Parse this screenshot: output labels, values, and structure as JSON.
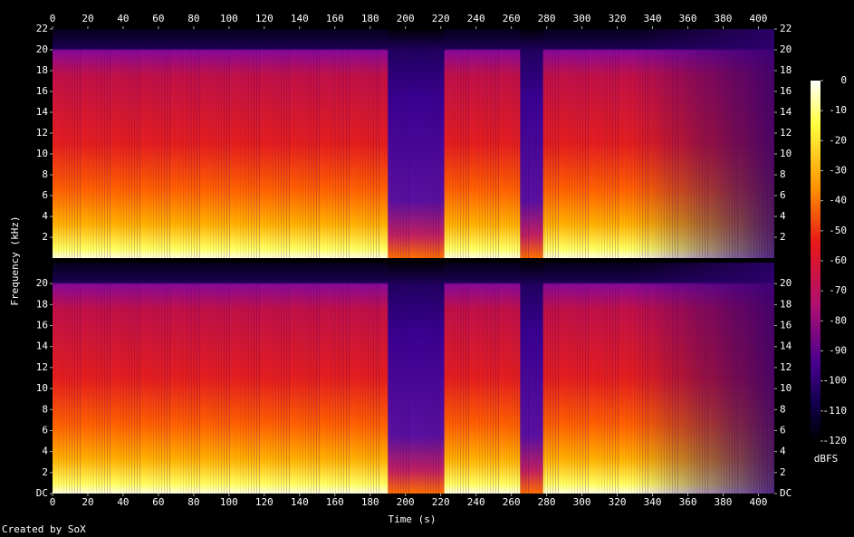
{
  "chart_data": [
    {
      "type": "spectrogram",
      "xtick_side": "top",
      "xlim": [
        0,
        409
      ],
      "xticks": [
        0,
        20,
        40,
        60,
        80,
        100,
        120,
        140,
        160,
        180,
        200,
        220,
        240,
        260,
        280,
        300,
        320,
        340,
        360,
        380,
        400
      ],
      "ylim": [
        0,
        22
      ],
      "yticks": [
        2,
        4,
        6,
        8,
        10,
        12,
        14,
        16,
        18,
        20,
        22
      ]
    },
    {
      "type": "spectrogram",
      "xtick_side": "bottom",
      "xlim": [
        0,
        409
      ],
      "xticks": [
        0,
        20,
        40,
        60,
        80,
        100,
        120,
        140,
        160,
        180,
        200,
        220,
        240,
        260,
        280,
        300,
        320,
        340,
        360,
        380,
        400
      ],
      "ylim": [
        0,
        22
      ],
      "yticks": [
        {
          "value": 0,
          "label": "DC"
        },
        2,
        4,
        6,
        8,
        10,
        12,
        14,
        16,
        18,
        20
      ]
    },
    {
      "type": "colorbar",
      "ylim": [
        -120,
        0
      ],
      "yticks": [
        0,
        -10,
        -20,
        -30,
        -40,
        -50,
        -60,
        -70,
        -80,
        -90,
        -100,
        -110,
        -120
      ],
      "label": "dBFS"
    }
  ],
  "xlabel": "Time (s)",
  "ylabel": "Frequency (kHz)",
  "credit": "Created by SoX"
}
